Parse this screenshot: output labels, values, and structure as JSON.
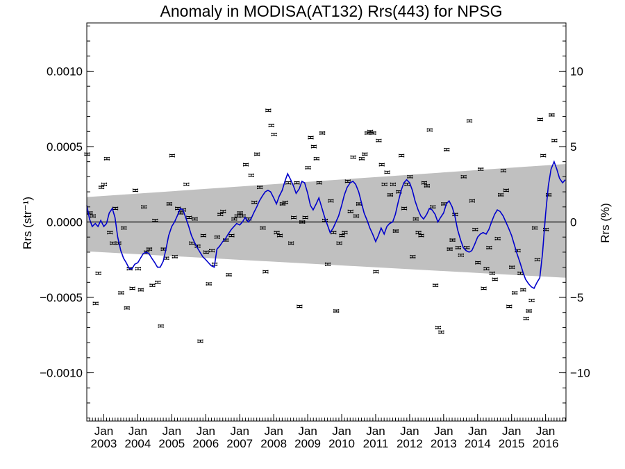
{
  "chart_data": {
    "type": "scatter",
    "title": "Anomaly in MODISA(AT132) Rrs(443) for NPSG",
    "ylabel_left": "Rrs (str⁻¹)",
    "ylabel_right": "Rrs (%)",
    "x_range": [
      2002.5,
      2016.6
    ],
    "y_range_left": [
      -0.00132,
      0.00132
    ],
    "y_range_right": [
      -13.2,
      13.2
    ],
    "x_ticks": [
      {
        "x": 2003.0,
        "month": "Jan",
        "year": "2003"
      },
      {
        "x": 2004.0,
        "month": "Jan",
        "year": "2004"
      },
      {
        "x": 2005.0,
        "month": "Jan",
        "year": "2005"
      },
      {
        "x": 2006.0,
        "month": "Jan",
        "year": "2006"
      },
      {
        "x": 2007.0,
        "month": "Jan",
        "year": "2007"
      },
      {
        "x": 2008.0,
        "month": "Jan",
        "year": "2008"
      },
      {
        "x": 2009.0,
        "month": "Jan",
        "year": "2009"
      },
      {
        "x": 2010.0,
        "month": "Jan",
        "year": "2010"
      },
      {
        "x": 2011.0,
        "month": "Jan",
        "year": "2011"
      },
      {
        "x": 2012.0,
        "month": "Jan",
        "year": "2012"
      },
      {
        "x": 2013.0,
        "month": "Jan",
        "year": "2013"
      },
      {
        "x": 2014.0,
        "month": "Jan",
        "year": "2014"
      },
      {
        "x": 2015.0,
        "month": "Jan",
        "year": "2015"
      },
      {
        "x": 2016.0,
        "month": "Jan",
        "year": "2016"
      }
    ],
    "y_ticks_left": [
      {
        "v": 0.001,
        "label": "0.0010"
      },
      {
        "v": 0.0005,
        "label": "0.0005"
      },
      {
        "v": 0.0,
        "label": "0.0000"
      },
      {
        "v": -0.0005,
        "label": "−0.0005"
      },
      {
        "v": -0.001,
        "label": "−0.0010"
      }
    ],
    "y_ticks_right": [
      {
        "v": 10,
        "label": "10"
      },
      {
        "v": 5,
        "label": "5"
      },
      {
        "v": 0,
        "label": "0"
      },
      {
        "v": -5,
        "label": "−5"
      },
      {
        "v": -10,
        "label": "−10"
      }
    ],
    "band": {
      "color": "#c0c0c0",
      "upper": [
        [
          2002.5,
          0.000165
        ],
        [
          2016.6,
          0.000385
        ]
      ],
      "lower": [
        [
          2002.5,
          -0.000195
        ],
        [
          2016.6,
          -0.00037
        ]
      ]
    },
    "zero_line_color": "#000000",
    "smoothed_line_color": "#0000cc",
    "marker_color": "#000000",
    "monthly_points": [
      [
        2002.51,
        0.00045
      ],
      [
        2002.59,
        6e-05
      ],
      [
        2002.68,
        4e-05
      ],
      [
        2002.76,
        -0.00054
      ],
      [
        2002.84,
        -0.00034
      ],
      [
        2002.93,
        0.00023
      ],
      [
        2003.01,
        0.00025
      ],
      [
        2003.09,
        0.00042
      ],
      [
        2003.18,
        -7e-05
      ],
      [
        2003.26,
        -0.00014
      ],
      [
        2003.34,
        9e-05
      ],
      [
        2003.43,
        -0.00014
      ],
      [
        2003.51,
        -0.00047
      ],
      [
        2003.59,
        -4e-05
      ],
      [
        2003.68,
        -0.00057
      ],
      [
        2003.76,
        -0.00031
      ],
      [
        2003.84,
        -0.00044
      ],
      [
        2003.93,
        0.00021
      ],
      [
        2004.01,
        -0.00031
      ],
      [
        2004.09,
        -0.00045
      ],
      [
        2004.18,
        0.0001
      ],
      [
        2004.26,
        -0.0002
      ],
      [
        2004.34,
        -0.00018
      ],
      [
        2004.43,
        -0.00042
      ],
      [
        2004.51,
        1e-05
      ],
      [
        2004.59,
        -0.0004
      ],
      [
        2004.68,
        -0.00069
      ],
      [
        2004.76,
        -0.00018
      ],
      [
        2004.84,
        -0.00024
      ],
      [
        2004.93,
        0.00012
      ],
      [
        2005.01,
        0.00044
      ],
      [
        2005.09,
        -0.00023
      ],
      [
        2005.18,
        9e-05
      ],
      [
        2005.26,
        6e-05
      ],
      [
        2005.34,
        8e-05
      ],
      [
        2005.43,
        0.00025
      ],
      [
        2005.51,
        3e-05
      ],
      [
        2005.59,
        -0.00014
      ],
      [
        2005.68,
        2e-05
      ],
      [
        2005.76,
        -0.00016
      ],
      [
        2005.84,
        -0.00079
      ],
      [
        2005.93,
        -9e-05
      ],
      [
        2006.01,
        -0.0002
      ],
      [
        2006.09,
        -0.00041
      ],
      [
        2006.18,
        -0.00019
      ],
      [
        2006.26,
        -0.00028
      ],
      [
        2006.34,
        -0.0001
      ],
      [
        2006.43,
        5e-05
      ],
      [
        2006.51,
        7e-05
      ],
      [
        2006.59,
        -0.00012
      ],
      [
        2006.68,
        -0.00035
      ],
      [
        2006.76,
        -9e-05
      ],
      [
        2006.84,
        2e-05
      ],
      [
        2006.93,
        4e-05
      ],
      [
        2007.01,
        6e-05
      ],
      [
        2007.09,
        4e-05
      ],
      [
        2007.18,
        0.00038
      ],
      [
        2007.26,
        2e-05
      ],
      [
        2007.34,
        0.00031
      ],
      [
        2007.43,
        0.00013
      ],
      [
        2007.51,
        0.00045
      ],
      [
        2007.59,
        0.00023
      ],
      [
        2007.68,
        -4e-05
      ],
      [
        2007.76,
        -0.00033
      ],
      [
        2007.84,
        0.00074
      ],
      [
        2007.93,
        0.00064
      ],
      [
        2008.01,
        0.00058
      ],
      [
        2008.09,
        -7e-05
      ],
      [
        2008.18,
        -9e-05
      ],
      [
        2008.26,
        0.00012
      ],
      [
        2008.34,
        0.00013
      ],
      [
        2008.43,
        0.00026
      ],
      [
        2008.51,
        -0.00014
      ],
      [
        2008.59,
        3e-05
      ],
      [
        2008.68,
        0.00026
      ],
      [
        2008.76,
        -0.00056
      ],
      [
        2008.84,
        0.0
      ],
      [
        2008.93,
        3e-05
      ],
      [
        2009.01,
        0.00036
      ],
      [
        2009.09,
        0.00056
      ],
      [
        2009.18,
        0.0005
      ],
      [
        2009.26,
        0.00042
      ],
      [
        2009.34,
        0.00026
      ],
      [
        2009.43,
        0.00059
      ],
      [
        2009.51,
        1e-05
      ],
      [
        2009.59,
        -0.00028
      ],
      [
        2009.68,
        0.00014
      ],
      [
        2009.76,
        -7e-05
      ],
      [
        2009.84,
        -0.00059
      ],
      [
        2009.93,
        -0.00014
      ],
      [
        2010.01,
        -9e-05
      ],
      [
        2010.09,
        -7e-05
      ],
      [
        2010.18,
        0.00027
      ],
      [
        2010.26,
        7e-05
      ],
      [
        2010.34,
        0.00043
      ],
      [
        2010.43,
        4e-05
      ],
      [
        2010.51,
        0.00012
      ],
      [
        2010.59,
        0.00042
      ],
      [
        2010.68,
        0.00045
      ],
      [
        2010.76,
        0.00059
      ],
      [
        2010.84,
        0.0006
      ],
      [
        2010.93,
        0.00059
      ],
      [
        2011.01,
        -0.00033
      ],
      [
        2011.09,
        0.00054
      ],
      [
        2011.18,
        0.00038
      ],
      [
        2011.26,
        0.00025
      ],
      [
        2011.34,
        0.00033
      ],
      [
        2011.43,
        0.00018
      ],
      [
        2011.51,
        0.00025
      ],
      [
        2011.59,
        -6e-05
      ],
      [
        2011.68,
        0.0002
      ],
      [
        2011.76,
        0.00044
      ],
      [
        2011.84,
        9e-05
      ],
      [
        2011.93,
        0.00025
      ],
      [
        2012.01,
        0.0003
      ],
      [
        2012.09,
        -0.00023
      ],
      [
        2012.18,
        2e-05
      ],
      [
        2012.26,
        -7e-05
      ],
      [
        2012.34,
        -9e-05
      ],
      [
        2012.43,
        0.00026
      ],
      [
        2012.51,
        0.00024
      ],
      [
        2012.59,
        0.00061
      ],
      [
        2012.68,
        0.0001
      ],
      [
        2012.76,
        -0.00042
      ],
      [
        2012.84,
        -0.0007
      ],
      [
        2012.93,
        -0.00073
      ],
      [
        2013.01,
        0.00012
      ],
      [
        2013.09,
        0.00048
      ],
      [
        2013.18,
        -0.00018
      ],
      [
        2013.26,
        -0.00012
      ],
      [
        2013.34,
        5e-05
      ],
      [
        2013.43,
        -0.00017
      ],
      [
        2013.51,
        -0.00022
      ],
      [
        2013.59,
        0.0003
      ],
      [
        2013.68,
        -0.00017
      ],
      [
        2013.76,
        0.00067
      ],
      [
        2013.84,
        0.00014
      ],
      [
        2013.93,
        -5e-05
      ],
      [
        2014.01,
        -0.00027
      ],
      [
        2014.09,
        0.00035
      ],
      [
        2014.18,
        -0.00044
      ],
      [
        2014.26,
        -0.00031
      ],
      [
        2014.34,
        -0.00017
      ],
      [
        2014.43,
        -0.00034
      ],
      [
        2014.51,
        -0.00038
      ],
      [
        2014.59,
        -0.00011
      ],
      [
        2014.68,
        0.00018
      ],
      [
        2014.76,
        0.00034
      ],
      [
        2014.84,
        0.00021
      ],
      [
        2014.93,
        -0.00056
      ],
      [
        2015.01,
        -0.0003
      ],
      [
        2015.09,
        -0.00047
      ],
      [
        2015.18,
        -0.00019
      ],
      [
        2015.26,
        -0.00034
      ],
      [
        2015.34,
        -0.00045
      ],
      [
        2015.43,
        -0.00064
      ],
      [
        2015.51,
        -0.00059
      ],
      [
        2015.59,
        -0.00052
      ],
      [
        2015.68,
        -4e-05
      ],
      [
        2015.76,
        -0.00025
      ],
      [
        2015.84,
        0.00068
      ],
      [
        2015.93,
        0.00044
      ],
      [
        2016.01,
        -5e-05
      ],
      [
        2016.09,
        0.00018
      ],
      [
        2016.18,
        0.00071
      ],
      [
        2016.26,
        0.00054
      ]
    ],
    "smoothed_line": [
      [
        2002.5,
        0.00011
      ],
      [
        2002.58,
        2e-05
      ],
      [
        2002.66,
        -3e-05
      ],
      [
        2002.75,
        -1e-05
      ],
      [
        2002.83,
        -3e-05
      ],
      [
        2002.91,
        1e-05
      ],
      [
        2003.0,
        -3e-05
      ],
      [
        2003.08,
        -1e-05
      ],
      [
        2003.16,
        6e-05
      ],
      [
        2003.25,
        9e-05
      ],
      [
        2003.33,
        3e-05
      ],
      [
        2003.41,
        -0.0001
      ],
      [
        2003.5,
        -0.00019
      ],
      [
        2003.58,
        -0.00024
      ],
      [
        2003.66,
        -0.00027
      ],
      [
        2003.75,
        -0.00031
      ],
      [
        2003.83,
        -0.00031
      ],
      [
        2003.91,
        -0.00028
      ],
      [
        2004.0,
        -0.00027
      ],
      [
        2004.08,
        -0.00024
      ],
      [
        2004.16,
        -0.00021
      ],
      [
        2004.25,
        -0.0002
      ],
      [
        2004.33,
        -0.00021
      ],
      [
        2004.41,
        -0.00024
      ],
      [
        2004.5,
        -0.00027
      ],
      [
        2004.58,
        -0.0003
      ],
      [
        2004.66,
        -0.0003
      ],
      [
        2004.75,
        -0.00026
      ],
      [
        2004.83,
        -0.00018
      ],
      [
        2004.91,
        -9e-05
      ],
      [
        2005.0,
        -3e-05
      ],
      [
        2005.08,
        0.0
      ],
      [
        2005.16,
        4e-05
      ],
      [
        2005.25,
        9e-05
      ],
      [
        2005.33,
        8e-05
      ],
      [
        2005.41,
        3e-05
      ],
      [
        2005.5,
        -3e-05
      ],
      [
        2005.58,
        -9e-05
      ],
      [
        2005.66,
        -0.00013
      ],
      [
        2005.75,
        -0.00017
      ],
      [
        2005.83,
        -0.0002
      ],
      [
        2005.91,
        -0.00023
      ],
      [
        2006.0,
        -0.00025
      ],
      [
        2006.08,
        -0.00027
      ],
      [
        2006.16,
        -0.00029
      ],
      [
        2006.25,
        -0.0003
      ],
      [
        2006.33,
        -0.00018
      ],
      [
        2006.41,
        -0.00016
      ],
      [
        2006.5,
        -0.00013
      ],
      [
        2006.58,
        -0.00011
      ],
      [
        2006.66,
        -8e-05
      ],
      [
        2006.75,
        -5e-05
      ],
      [
        2006.83,
        -3e-05
      ],
      [
        2006.91,
        -1e-05
      ],
      [
        2007.0,
        -2e-05
      ],
      [
        2007.08,
        0.0
      ],
      [
        2007.16,
        3e-05
      ],
      [
        2007.25,
        0.0
      ],
      [
        2007.33,
        2e-05
      ],
      [
        2007.41,
        6e-05
      ],
      [
        2007.5,
        0.0001
      ],
      [
        2007.58,
        0.00014
      ],
      [
        2007.66,
        0.00017
      ],
      [
        2007.75,
        0.0002
      ],
      [
        2007.83,
        0.00021
      ],
      [
        2007.91,
        0.0002
      ],
      [
        2008.0,
        0.00016
      ],
      [
        2008.08,
        0.00012
      ],
      [
        2008.16,
        0.00017
      ],
      [
        2008.25,
        0.00021
      ],
      [
        2008.33,
        0.00027
      ],
      [
        2008.41,
        0.00032
      ],
      [
        2008.5,
        0.00028
      ],
      [
        2008.58,
        0.00024
      ],
      [
        2008.66,
        0.00019
      ],
      [
        2008.75,
        0.00022
      ],
      [
        2008.83,
        0.00027
      ],
      [
        2008.91,
        0.00026
      ],
      [
        2009.0,
        0.00019
      ],
      [
        2009.08,
        0.00011
      ],
      [
        2009.16,
        8e-05
      ],
      [
        2009.25,
        0.00012
      ],
      [
        2009.33,
        0.00016
      ],
      [
        2009.41,
        0.0001
      ],
      [
        2009.5,
        3e-05
      ],
      [
        2009.58,
        -2e-05
      ],
      [
        2009.66,
        -7e-05
      ],
      [
        2009.75,
        -4e-05
      ],
      [
        2009.83,
        0.0
      ],
      [
        2009.91,
        4e-05
      ],
      [
        2010.0,
        0.00011
      ],
      [
        2010.08,
        0.00018
      ],
      [
        2010.16,
        0.00023
      ],
      [
        2010.25,
        0.00026
      ],
      [
        2010.33,
        0.00027
      ],
      [
        2010.41,
        0.00025
      ],
      [
        2010.5,
        0.0002
      ],
      [
        2010.58,
        0.00013
      ],
      [
        2010.66,
        6e-05
      ],
      [
        2010.75,
        1e-05
      ],
      [
        2010.83,
        -4e-05
      ],
      [
        2010.91,
        -8e-05
      ],
      [
        2011.0,
        -0.00013
      ],
      [
        2011.08,
        -9e-05
      ],
      [
        2011.16,
        -4e-05
      ],
      [
        2011.25,
        -8e-05
      ],
      [
        2011.33,
        -3e-05
      ],
      [
        2011.41,
        -1e-05
      ],
      [
        2011.5,
        0.0
      ],
      [
        2011.58,
        5e-05
      ],
      [
        2011.66,
        0.00013
      ],
      [
        2011.75,
        0.00021
      ],
      [
        2011.83,
        0.00026
      ],
      [
        2011.91,
        0.00028
      ],
      [
        2012.0,
        0.00026
      ],
      [
        2012.08,
        0.00021
      ],
      [
        2012.16,
        0.00014
      ],
      [
        2012.25,
        8e-05
      ],
      [
        2012.33,
        4e-05
      ],
      [
        2012.41,
        2e-05
      ],
      [
        2012.5,
        5e-05
      ],
      [
        2012.58,
        9e-05
      ],
      [
        2012.66,
        8e-05
      ],
      [
        2012.75,
        5e-05
      ],
      [
        2012.83,
        0.0
      ],
      [
        2012.91,
        3e-05
      ],
      [
        2013.0,
        6e-05
      ],
      [
        2013.08,
        0.00012
      ],
      [
        2013.16,
        0.00014
      ],
      [
        2013.25,
        0.0001
      ],
      [
        2013.33,
        4e-05
      ],
      [
        2013.41,
        -5e-05
      ],
      [
        2013.5,
        -0.00012
      ],
      [
        2013.58,
        -0.00017
      ],
      [
        2013.66,
        -0.00019
      ],
      [
        2013.75,
        -0.0002
      ],
      [
        2013.83,
        -0.00019
      ],
      [
        2013.91,
        -0.00015
      ],
      [
        2014.0,
        -0.0001
      ],
      [
        2014.08,
        -8e-05
      ],
      [
        2014.16,
        -7e-05
      ],
      [
        2014.25,
        -8e-05
      ],
      [
        2014.33,
        -5e-05
      ],
      [
        2014.41,
        0.0
      ],
      [
        2014.5,
        5e-05
      ],
      [
        2014.58,
        8e-05
      ],
      [
        2014.66,
        7e-05
      ],
      [
        2014.75,
        4e-05
      ],
      [
        2014.83,
        0.0
      ],
      [
        2014.91,
        -4e-05
      ],
      [
        2015.0,
        -9e-05
      ],
      [
        2015.08,
        -0.00015
      ],
      [
        2015.16,
        -0.00021
      ],
      [
        2015.25,
        -0.00027
      ],
      [
        2015.33,
        -0.00033
      ],
      [
        2015.41,
        -0.00038
      ],
      [
        2015.5,
        -0.00041
      ],
      [
        2015.58,
        -0.00043
      ],
      [
        2015.66,
        -0.00044
      ],
      [
        2015.75,
        -0.0004
      ],
      [
        2015.83,
        -0.00037
      ],
      [
        2015.91,
        -0.00021
      ],
      [
        2016.0,
        5e-05
      ],
      [
        2016.08,
        0.00024
      ],
      [
        2016.16,
        0.00035
      ],
      [
        2016.25,
        0.0004
      ],
      [
        2016.33,
        0.00035
      ],
      [
        2016.41,
        0.00029
      ],
      [
        2016.5,
        0.00026
      ],
      [
        2016.58,
        0.00028
      ]
    ]
  }
}
